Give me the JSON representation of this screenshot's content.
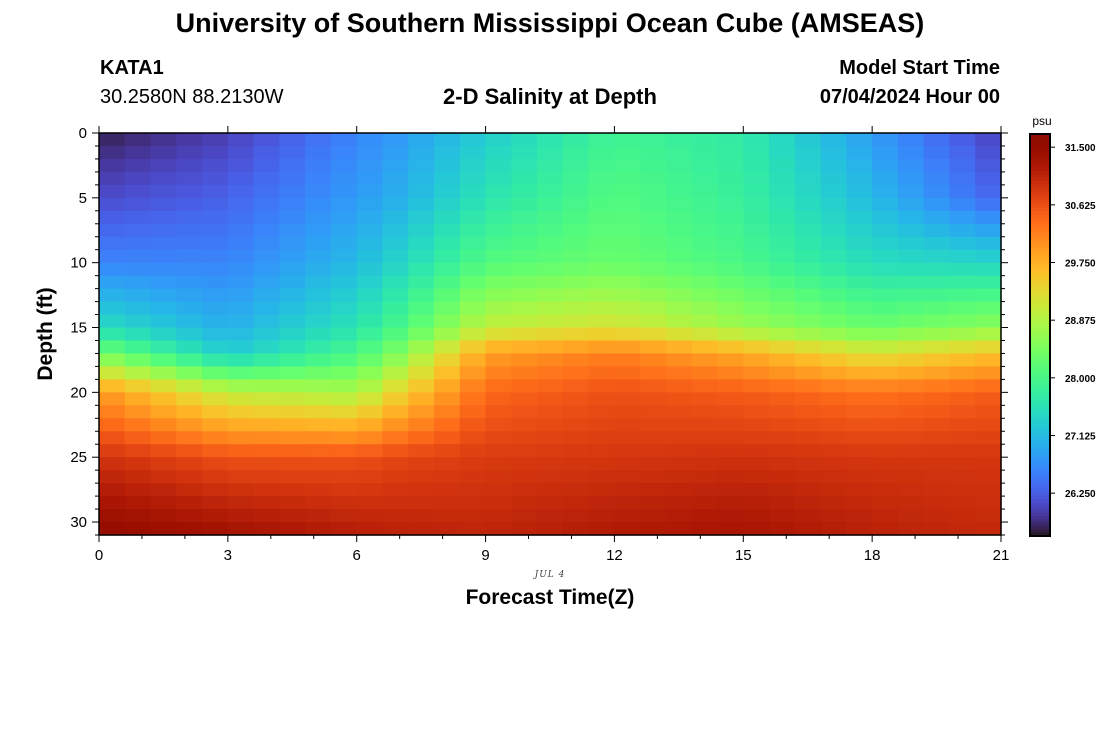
{
  "page": {
    "title_top": "University of Southern Mississippi Ocean Cube (AMSEAS)",
    "title_bottom": "University of Southern Mississippi Ocean Cube (AMSEAS)",
    "station_id": "KATA1",
    "station_coords": "30.2580N  88.2130W",
    "subtitle": "2-D Salinity at Depth",
    "model_label": "Model Start Time",
    "model_time": "07/04/2024 Hour 00"
  },
  "chart_data": {
    "type": "heatmap",
    "title": "2-D Salinity at Depth",
    "xlabel": "Forecast Time(Z)",
    "ylabel": "Depth (ft)",
    "x_date_label": "JUL 4",
    "xlim": [
      0,
      21
    ],
    "ylim": [
      0,
      31
    ],
    "x_ticks": [
      "0",
      "3",
      "6",
      "9",
      "12",
      "15",
      "18",
      "21"
    ],
    "x_tick_values": [
      0,
      3,
      6,
      9,
      12,
      15,
      18,
      21
    ],
    "y_ticks": [
      "0",
      "5",
      "10",
      "15",
      "20",
      "25",
      "30"
    ],
    "y_tick_values": [
      0,
      5,
      10,
      15,
      20,
      25,
      30
    ],
    "colorbar": {
      "unit": "psu",
      "min": 25.6,
      "max": 31.7,
      "tick_labels": [
        "31.500",
        "30.625",
        "29.750",
        "28.875",
        "28.000",
        "27.125",
        "26.250"
      ],
      "tick_values": [
        31.5,
        30.625,
        29.75,
        28.875,
        28.0,
        27.125,
        26.25
      ],
      "colormap": "turbo"
    },
    "field": {
      "description": "salinity (psu) vs forecast hour and depth (ft); values at each hour are piecewise-linear in depth",
      "depth_profile_ft": [
        0,
        5,
        10,
        15,
        17,
        20,
        25,
        31
      ],
      "profiles": [
        {
          "hour": 0,
          "values": [
            25.7,
            26.1,
            26.6,
            27.5,
            28.4,
            30.0,
            30.9,
            31.55
          ]
        },
        {
          "hour": 3,
          "values": [
            26.0,
            26.3,
            26.6,
            27.0,
            27.3,
            29.0,
            30.6,
            31.35
          ]
        },
        {
          "hour": 6,
          "values": [
            26.6,
            26.8,
            27.1,
            27.6,
            28.0,
            28.8,
            30.6,
            31.15
          ]
        },
        {
          "hour": 7,
          "values": [
            26.8,
            27.0,
            27.4,
            28.0,
            28.5,
            29.4,
            30.7,
            31.1
          ]
        },
        {
          "hour": 9,
          "values": [
            27.3,
            27.6,
            28.1,
            29.0,
            29.9,
            30.4,
            30.8,
            31.05
          ]
        },
        {
          "hour": 12,
          "values": [
            27.9,
            28.1,
            28.3,
            29.2,
            30.2,
            30.6,
            30.85,
            31.2
          ]
        },
        {
          "hour": 15,
          "values": [
            27.7,
            27.8,
            28.0,
            28.7,
            29.8,
            30.5,
            30.9,
            31.3
          ]
        },
        {
          "hour": 18,
          "values": [
            26.8,
            27.1,
            27.5,
            28.3,
            29.2,
            30.3,
            30.85,
            31.1
          ]
        },
        {
          "hour": 21,
          "values": [
            26.0,
            26.3,
            27.4,
            28.6,
            29.6,
            30.5,
            30.85,
            31.0
          ]
        }
      ]
    }
  }
}
